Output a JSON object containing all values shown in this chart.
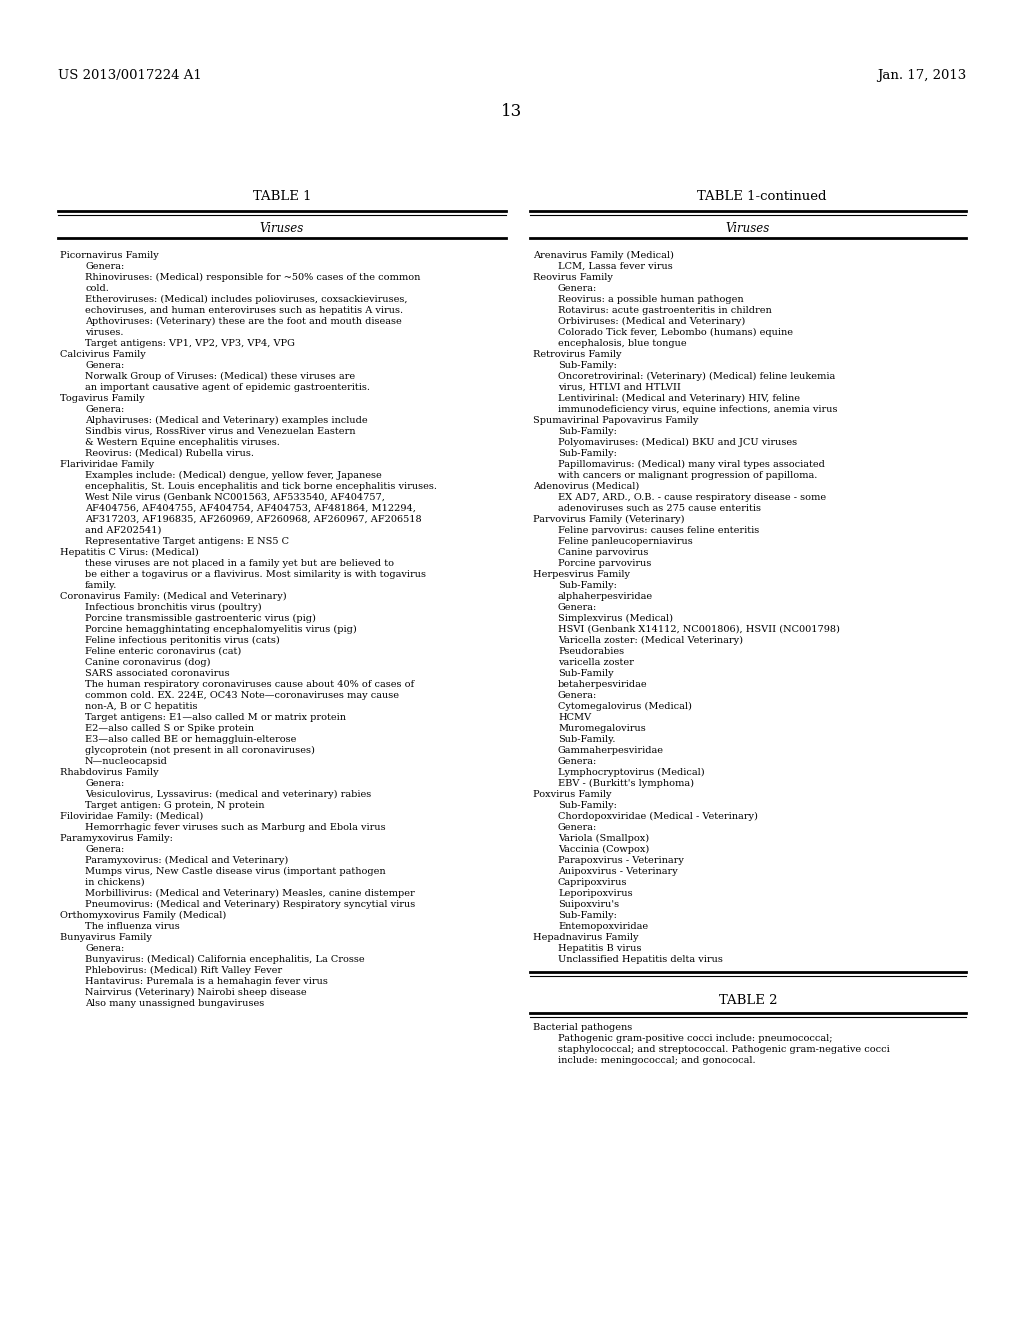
{
  "header_left": "US 2013/0017224 A1",
  "header_right": "Jan. 17, 2013",
  "page_number": "13",
  "table1_title": "TABLE 1",
  "table1cont_title": "TABLE 1-continued",
  "table2_title": "TABLE 2",
  "col_header": "Viruses",
  "bg_color": "#ffffff",
  "text_color": "#000000",
  "font_size": 7.0,
  "header_font_size": 9.5,
  "page_num_font_size": 12.0,
  "table_title_font_size": 9.5,
  "col_header_font_size": 8.5,
  "left_content": [
    "Picornavirus Family",
    "   Genera:",
    "   Rhinoviruses: (Medical) responsible for ~50% cases of the common",
    "   cold.",
    "   Etheroviruses: (Medical) includes polioviruses, coxsackieviruses,",
    "   echoviruses, and human enteroviruses such as hepatitis A virus.",
    "   Apthoviruses: (Veterinary) these are the foot and mouth disease",
    "   viruses.",
    "   Target antigens: VP1, VP2, VP3, VP4, VPG",
    "Calcivirus Family",
    "   Genera:",
    "   Norwalk Group of Viruses: (Medical) these viruses are",
    "   an important causative agent of epidemic gastroenteritis.",
    "Togavirus Family",
    "   Genera:",
    "   Alphaviruses: (Medical and Veterinary) examples include",
    "   Sindbis virus, RossRiver virus and Venezuelan Eastern",
    "   & Western Equine encephalitis viruses.",
    "   Reovirus: (Medical) Rubella virus.",
    "Flariviridae Family",
    "   Examples include: (Medical) dengue, yellow fever, Japanese",
    "   encephalitis, St. Louis encephalitis and tick borne encephalitis viruses.",
    "   West Nile virus (Genbank NC001563, AF533540, AF404757,",
    "   AF404756, AF404755, AF404754, AF404753, AF481864, M12294,",
    "   AF317203, AF196835, AF260969, AF260968, AF260967, AF206518",
    "   and AF202541)",
    "   Representative Target antigens: E NS5 C",
    "Hepatitis C Virus: (Medical)",
    "   these viruses are not placed in a family yet but are believed to",
    "   be either a togavirus or a flavivirus. Most similarity is with togavirus",
    "   family.",
    "Coronavirus Family: (Medical and Veterinary)",
    "   Infectious bronchitis virus (poultry)",
    "   Porcine transmissible gastroenteric virus (pig)",
    "   Porcine hemagghintating encephalomyelitis virus (pig)",
    "   Feline infectious peritonitis virus (cats)",
    "   Feline enteric coronavirus (cat)",
    "   Canine coronavirus (dog)",
    "   SARS associated coronavirus",
    "   The human respiratory coronaviruses cause about 40% of cases of",
    "   common cold. EX. 224E, OC43 Note—coronaviruses may cause",
    "   non-A, B or C hepatitis",
    "   Target antigens: E1—also called M or matrix protein",
    "   E2—also called S or Spike protein",
    "   E3—also called BE or hemaggluin-elterose",
    "   glycoprotein (not present in all coronaviruses)",
    "   N—nucleocapsid",
    "Rhabdovirus Family",
    "   Genera:",
    "   Vesiculovirus, Lyssavirus: (medical and veterinary) rabies",
    "   Target antigen: G protein, N protein",
    "Filoviridae Family: (Medical)",
    "   Hemorrhagic fever viruses such as Marburg and Ebola virus",
    "Paramyxovirus Family:",
    "   Genera:",
    "   Paramyxovirus: (Medical and Veterinary)",
    "   Mumps virus, New Castle disease virus (important pathogen",
    "   in chickens)",
    "   Morbillivirus: (Medical and Veterinary) Measles, canine distemper",
    "   Pneumovirus: (Medical and Veterinary) Respiratory syncytial virus",
    "Orthomyxovirus Family (Medical)",
    "   The influenza virus",
    "Bunyavirus Family",
    "   Genera:",
    "   Bunyavirus: (Medical) California encephalitis, La Crosse",
    "   Phlebovirus: (Medical) Rift Valley Fever",
    "   Hantavirus: Puremala is a hemahagin fever virus",
    "   Nairvirus (Veterinary) Nairobi sheep disease",
    "   Also many unassigned bungaviruses"
  ],
  "right_content": [
    "Arenavirus Family (Medical)",
    "   LCM, Lassa fever virus",
    "Reovirus Family",
    "   Genera:",
    "   Reovirus: a possible human pathogen",
    "   Rotavirus: acute gastroenteritis in children",
    "   Orbiviruses: (Medical and Veterinary)",
    "   Colorado Tick fever, Lebombo (humans) equine",
    "   encephalosis, blue tongue",
    "Retrovirus Family",
    "   Sub-Family:",
    "   Oncoretrovirinal: (Veterinary) (Medical) feline leukemia",
    "   virus, HTLVI and HTLVII",
    "   Lentivirinal: (Medical and Veterinary) HIV, feline",
    "   immunodeficiency virus, equine infections, anemia virus",
    "Spumavirinal Papovavirus Family",
    "   Sub-Family:",
    "   Polyomaviruses: (Medical) BKU and JCU viruses",
    "   Sub-Family:",
    "   Papillomavirus: (Medical) many viral types associated",
    "   with cancers or malignant progression of papilloma.",
    "Adenovirus (Medical)",
    "   EX AD7, ARD., O.B. - cause respiratory disease - some",
    "   adenoviruses such as 275 cause enteritis",
    "Parvovirus Family (Veterinary)",
    "   Feline parvovirus: causes feline enteritis",
    "   Feline panleucoperniavirus",
    "   Canine parvovirus",
    "   Porcine parvovirus",
    "Herpesvirus Family",
    "   Sub-Family:",
    "   alphaherpesviridae",
    "   Genera:",
    "   Simplexvirus (Medical)",
    "   HSVI (Genbank X14112, NC001806), HSVII (NC001798)",
    "   Varicella zoster: (Medical Veterinary)",
    "   Pseudorabies",
    "   varicella zoster",
    "   Sub-Family",
    "   betaherpesviridae",
    "   Genera:",
    "   Cytomegalovirus (Medical)",
    "   HCMV",
    "   Muromegalovirus",
    "   Sub-Family.",
    "   Gammaherpesviridae",
    "   Genera:",
    "   Lymphocryptovirus (Medical)",
    "   EBV - (Burkitt's lymphoma)",
    "Poxvirus Family",
    "   Sub-Family:",
    "   Chordopoxviridae (Medical - Veterinary)",
    "   Genera:",
    "   Variola (Smallpox)",
    "   Vaccinia (Cowpox)",
    "   Parapoxvirus - Veterinary",
    "   Auipoxvirus - Veterinary",
    "   Capripoxvirus",
    "   Leporipoxvirus",
    "   Suipoxviru's",
    "   Sub-Family:",
    "   Entemopoxviridae",
    "Hepadnavirus Family",
    "   Hepatitis B virus",
    "   Unclassified Hepatitis delta virus"
  ],
  "table2_content": [
    "Bacterial pathogens",
    "   Pathogenic gram-positive cocci include: pneumococcal;",
    "   staphylococcal; and streptococcal. Pathogenic gram-negative cocci",
    "   include: meningococcal; and gonococal."
  ]
}
